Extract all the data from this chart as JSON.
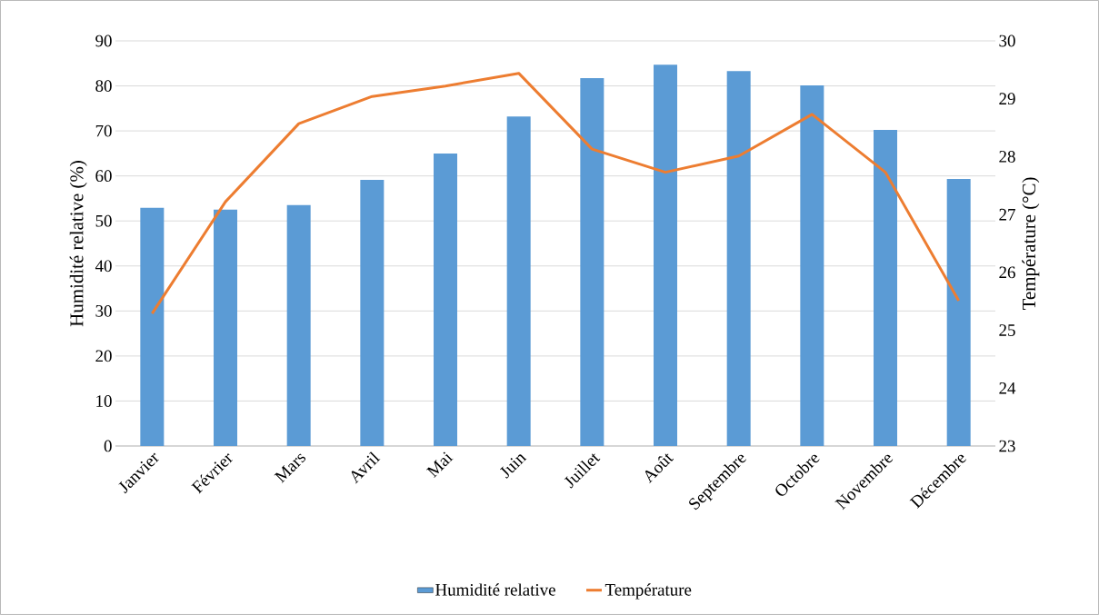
{
  "chart_data": {
    "type": "bar",
    "ylabel": "Humidité relative (%)",
    "y2label": "Température (°C)",
    "categories": [
      "Janvier",
      "Février",
      "Mars",
      "Avril",
      "Mai",
      "Juin",
      "Juillet",
      "Août",
      "Septembre",
      "Octobre",
      "Novembre",
      "Décembre"
    ],
    "series": [
      {
        "name": "Humidité relative",
        "color": "#5b9bd5",
        "values": [
          52.9,
          52.5,
          53.5,
          59.1,
          65.0,
          73.2,
          81.7,
          84.7,
          83.3,
          80.1,
          70.2,
          59.3
        ]
      },
      {
        "name": "Température",
        "type": "line",
        "axis": "y2",
        "color": "#ed7d31",
        "values": [
          25.29,
          27.22,
          28.57,
          29.04,
          29.22,
          29.44,
          28.13,
          27.73,
          28.01,
          28.73,
          27.73,
          25.51
        ]
      }
    ],
    "ylim": [
      0,
      90
    ],
    "yticks": [
      0,
      10,
      20,
      30,
      40,
      50,
      60,
      70,
      80,
      90
    ],
    "y2lim": [
      23,
      30
    ],
    "y2ticks": [
      23,
      24,
      25,
      26,
      27,
      28,
      29,
      30
    ],
    "grid": "y",
    "legend": "bottom"
  }
}
